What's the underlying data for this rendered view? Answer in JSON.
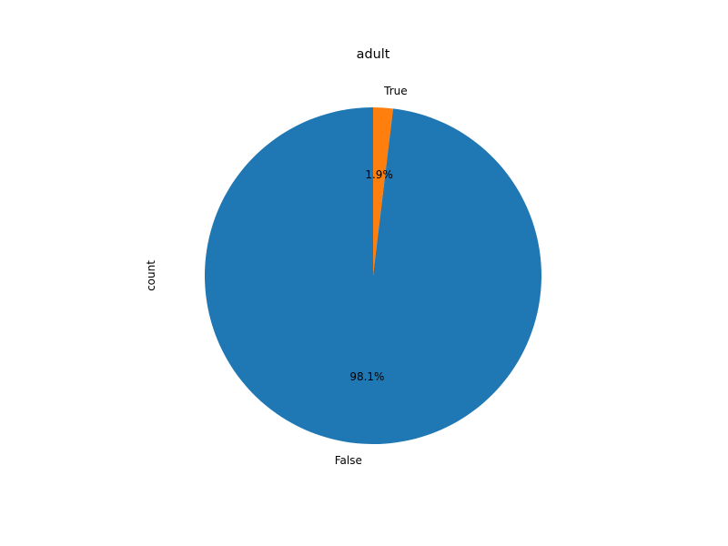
{
  "chart_data": {
    "type": "pie",
    "title": "adult",
    "ylabel": "count",
    "slices": [
      {
        "label": "False",
        "value": 98.1,
        "pct_label": "98.1%",
        "color": "#1f77b4"
      },
      {
        "label": "True",
        "value": 1.9,
        "pct_label": "1.9%",
        "color": "#ff7f0e"
      }
    ]
  }
}
